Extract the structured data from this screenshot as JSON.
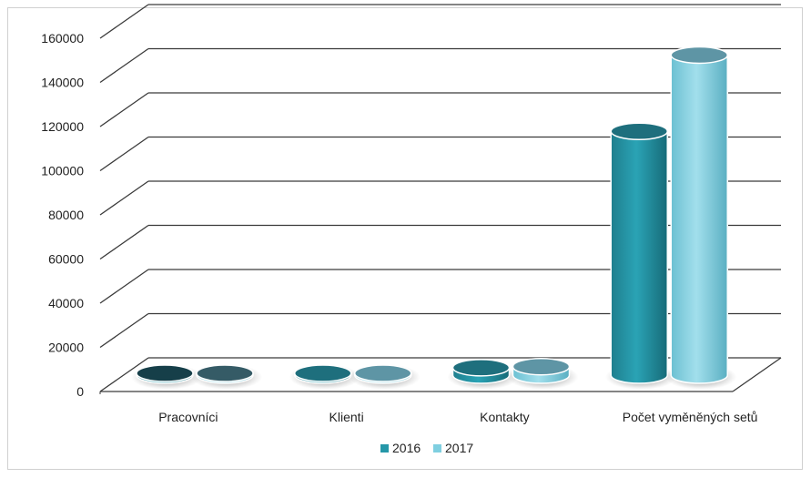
{
  "chart_data": {
    "type": "bar",
    "style": "3d-cylinder",
    "categories": [
      "Pracovníci",
      "Klienti",
      "Kontakty",
      "Počet vyměněných setů"
    ],
    "series": [
      {
        "name": "2016",
        "color": "#2597a8",
        "values": [
          500,
          400,
          3500,
          115000
        ]
      },
      {
        "name": "2017",
        "color": "#7fcfe0",
        "values": [
          500,
          500,
          4000,
          151000
        ]
      }
    ],
    "ylim": [
      0,
      160000
    ],
    "yticks": [
      0,
      20000,
      40000,
      60000,
      80000,
      100000,
      120000,
      140000,
      160000
    ],
    "grid": true,
    "legend_position": "bottom"
  }
}
